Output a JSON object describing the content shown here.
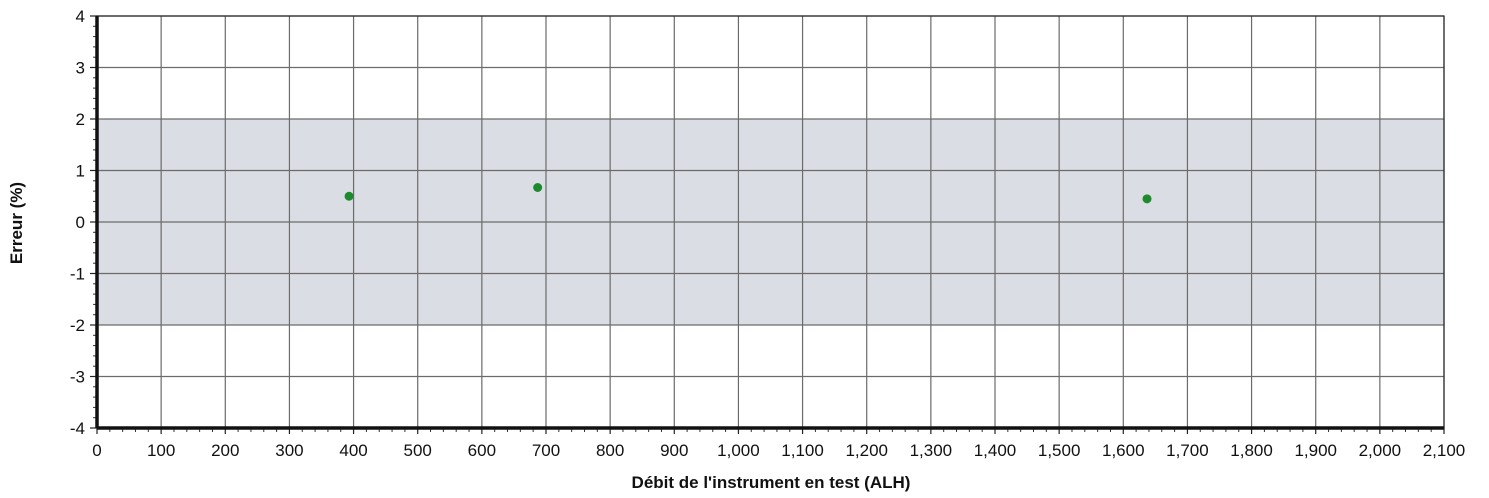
{
  "chart_data": {
    "type": "scatter",
    "title": "",
    "xlabel": "Débit de l'instrument en test (ALH)",
    "ylabel": "Erreur (%)",
    "xlim": [
      0,
      2100
    ],
    "ylim": [
      -4,
      4
    ],
    "x_ticks": [
      0,
      100,
      200,
      300,
      400,
      500,
      600,
      700,
      800,
      900,
      1000,
      1100,
      1200,
      1300,
      1400,
      1500,
      1600,
      1700,
      1800,
      1900,
      2000,
      2100
    ],
    "x_tick_labels": [
      "0",
      "100",
      "200",
      "300",
      "400",
      "500",
      "600",
      "700",
      "800",
      "900",
      "1,000",
      "1,100",
      "1,200",
      "1,300",
      "1,400",
      "1,500",
      "1,600",
      "1,700",
      "1,800",
      "1,900",
      "2,000",
      "2,100"
    ],
    "y_ticks": [
      -4,
      -3,
      -2,
      -1,
      0,
      1,
      2,
      3,
      4
    ],
    "y_tick_labels": [
      "-4",
      "-3",
      "-2",
      "-1",
      "0",
      "1",
      "2",
      "3",
      "4"
    ],
    "grid": true,
    "tolerance_band": {
      "lower": -2,
      "upper": 2,
      "color": "#dadde3"
    },
    "series": [
      {
        "color": "#1e8a2e",
        "points": [
          {
            "x": 393,
            "y": 0.5
          },
          {
            "x": 687,
            "y": 0.67
          },
          {
            "x": 1637,
            "y": 0.45
          }
        ]
      }
    ]
  }
}
